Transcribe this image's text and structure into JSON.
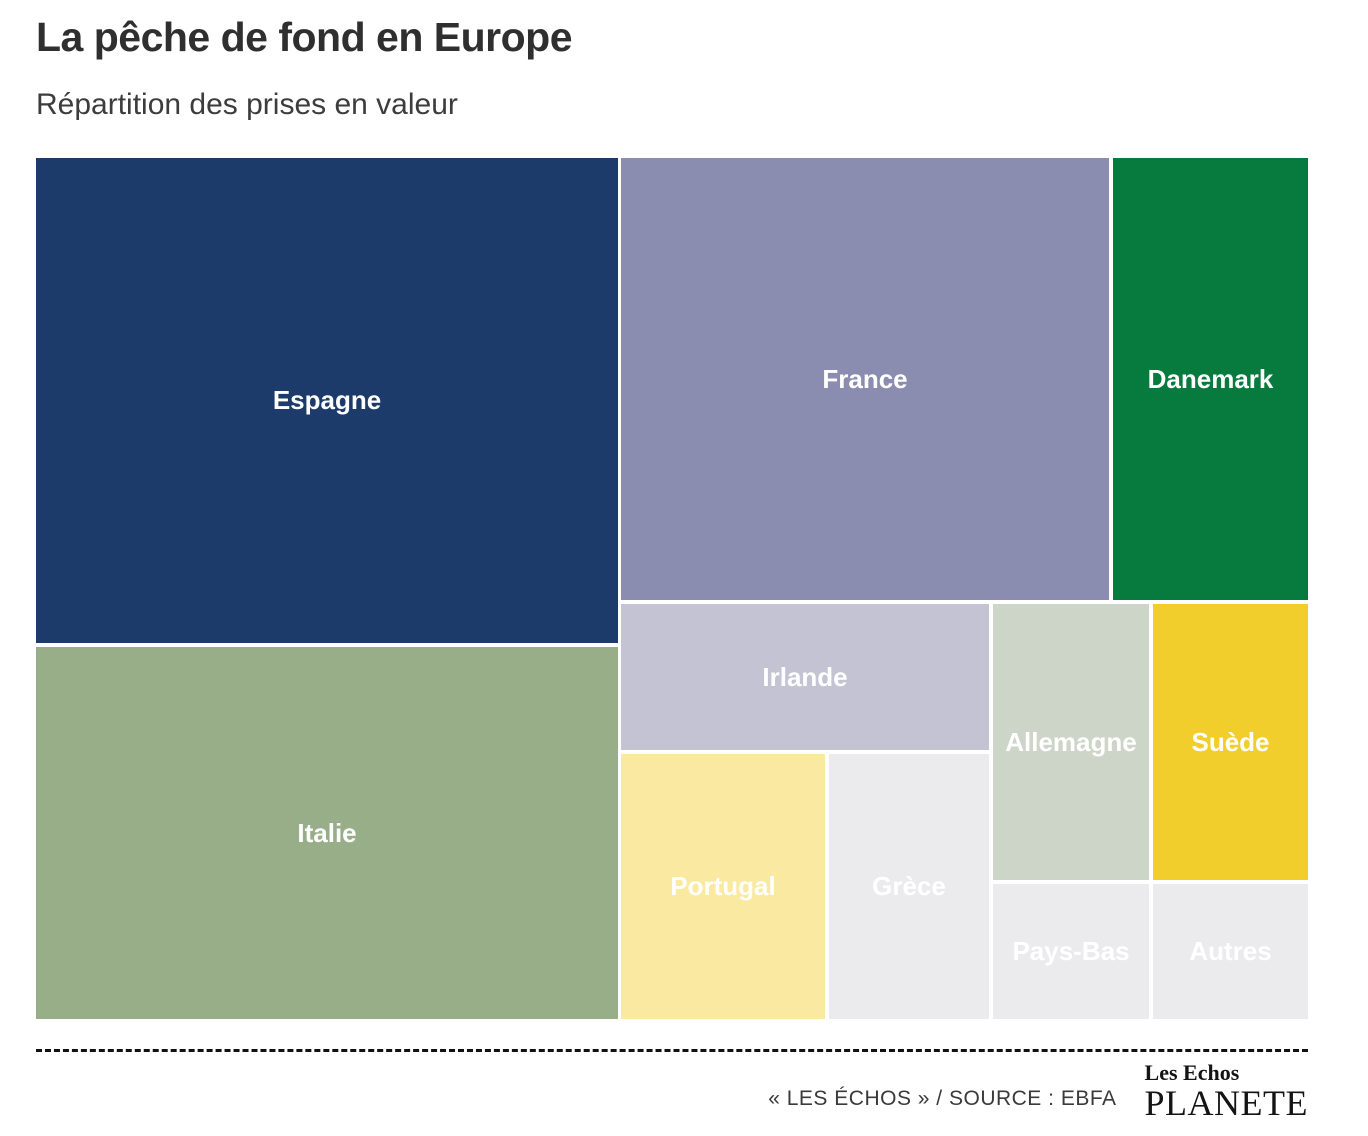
{
  "header": {
    "title": "La pêche de fond en Europe",
    "subtitle": "Répartition des prises en valeur"
  },
  "chart_data": {
    "type": "treemap",
    "title": "La pêche de fond en Europe",
    "subtitle": "Répartition des prises en valeur",
    "note": "no numeric labels shown; shares estimated from cell areas, in % of total",
    "items": [
      {
        "name": "Espagne",
        "share_pct_estimated": 26,
        "color": "#1c3b6b",
        "label_color": "#ffffff"
      },
      {
        "name": "Italie",
        "share_pct_estimated": 20,
        "color": "#97ae89",
        "label_color": "#ffffff"
      },
      {
        "name": "France",
        "share_pct_estimated": 20,
        "color": "#8a8cb0",
        "label_color": "#ffffff"
      },
      {
        "name": "Danemark",
        "share_pct_estimated": 8,
        "color": "#077a3d",
        "label_color": "#ffffff"
      },
      {
        "name": "Irlande",
        "share_pct_estimated": 5,
        "color": "#c4c3d4",
        "label_color": "#ffffff"
      },
      {
        "name": "Allemagne",
        "share_pct_estimated": 4,
        "color": "#cdd5c9",
        "label_color": "#ffffff"
      },
      {
        "name": "Suède",
        "share_pct_estimated": 4,
        "color": "#f1ce2b",
        "label_color": "#ffffff"
      },
      {
        "name": "Portugal",
        "share_pct_estimated": 5,
        "color": "#fae9a0",
        "label_color": "#ffffff"
      },
      {
        "name": "Grèce",
        "share_pct_estimated": 4,
        "color": "#ebebee",
        "label_color": "#ffffff"
      },
      {
        "name": "Pays-Bas",
        "share_pct_estimated": 2,
        "color": "#ebebee",
        "label_color": "#ffffff"
      },
      {
        "name": "Autres",
        "share_pct_estimated": 2,
        "color": "#ebebee",
        "label_color": "#ffffff"
      }
    ]
  },
  "footer": {
    "credit": "« LES ÉCHOS » / SOURCE : EBFA",
    "logo_line1": "Les Echos",
    "logo_line2": "PLANETE"
  }
}
